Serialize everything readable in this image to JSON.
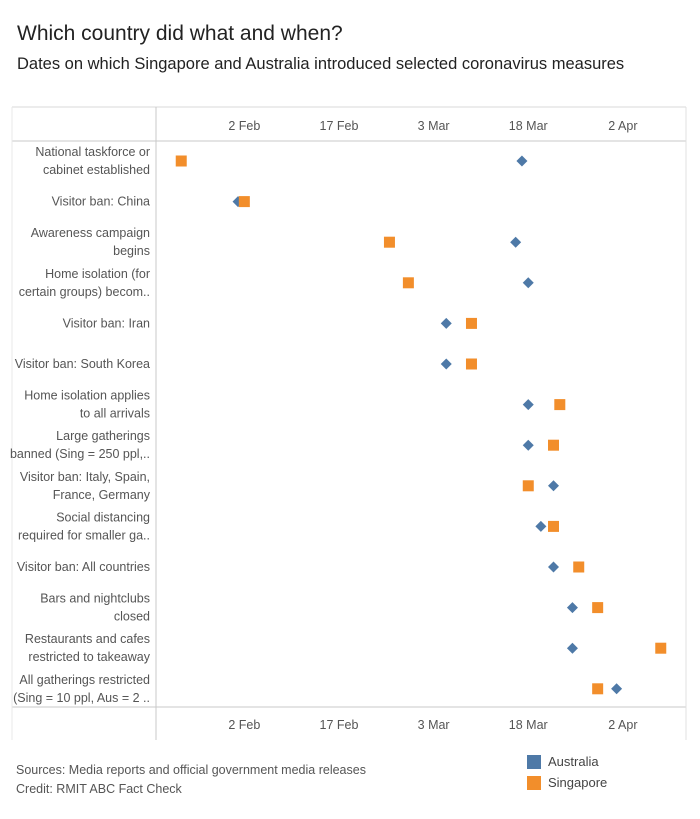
{
  "title": "Which country did what and when?",
  "subtitle": "Dates on which Singapore and Australia introduced selected coronavirus measures",
  "footer": {
    "sources": "Sources: Media reports and official government media releases",
    "credit": "Credit: RMIT ABC Fact Check"
  },
  "colors": {
    "australia": "#4e79a7",
    "singapore": "#f28e2b"
  },
  "chart_data": {
    "type": "scatter",
    "title": "Which country did what and when?",
    "subtitle": "Dates on which Singapore and Australia introduced selected coronavirus measures",
    "x_ticks": [
      "2 Feb",
      "17 Feb",
      "3 Mar",
      "18 Mar",
      "2 Apr"
    ],
    "x_range": [
      "2020-01-19",
      "2020-04-12"
    ],
    "grid": false,
    "legend_position": "bottom-right",
    "categories": [
      [
        "National taskforce or",
        "cabinet established"
      ],
      [
        "Visitor ban: China"
      ],
      [
        "Awareness campaign",
        "begins"
      ],
      [
        "Home isolation (for",
        "certain groups) becom.."
      ],
      [
        "Visitor ban: Iran"
      ],
      [
        "Visitor ban: South Korea"
      ],
      [
        "Home isolation applies",
        "to all arrivals"
      ],
      [
        "Large gatherings",
        "banned (Sing = 250 ppl,.."
      ],
      [
        "Visitor ban: Italy, Spain,",
        "France, Germany"
      ],
      [
        "Social distancing",
        "required for smaller ga.."
      ],
      [
        "Visitor ban: All countries"
      ],
      [
        "Bars and nightclubs",
        "closed"
      ],
      [
        "Restaurants and cafes",
        "restricted to takeaway"
      ],
      [
        "All gatherings restricted",
        "(Sing = 10 ppl, Aus = 2 .."
      ]
    ],
    "series": [
      {
        "name": "Australia",
        "shape": "diamond",
        "values": [
          "2020-03-17",
          "2020-02-01",
          "2020-03-16",
          "2020-03-18",
          "2020-03-05",
          "2020-03-05",
          "2020-03-18",
          "2020-03-18",
          "2020-03-22",
          "2020-03-20",
          "2020-03-22",
          "2020-03-25",
          "2020-03-25",
          "2020-04-01"
        ]
      },
      {
        "name": "Singapore",
        "shape": "square",
        "values": [
          "2020-01-23",
          "2020-02-02",
          "2020-02-25",
          "2020-02-28",
          "2020-03-09",
          "2020-03-09",
          "2020-03-23",
          "2020-03-22",
          "2020-03-18",
          "2020-03-22",
          "2020-03-26",
          "2020-03-29",
          "2020-04-08",
          "2020-03-29"
        ]
      }
    ]
  }
}
